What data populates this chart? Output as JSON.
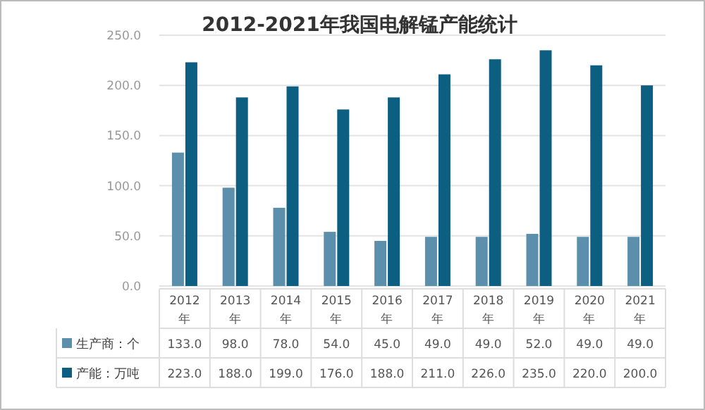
{
  "chart_data": {
    "type": "bar",
    "title": "2012-2021年我国电解锰产能统计",
    "categories": [
      "2012年",
      "2013年",
      "2014年",
      "2015年",
      "2016年",
      "2017年",
      "2018年",
      "2019年",
      "2020年",
      "2021年"
    ],
    "series": [
      {
        "name": "生产商：个",
        "color": "#5b8fab",
        "values": [
          133.0,
          98.0,
          78.0,
          54.0,
          45.0,
          49.0,
          49.0,
          52.0,
          49.0,
          49.0
        ],
        "value_labels": [
          "133.0",
          "98.0",
          "78.0",
          "54.0",
          "45.0",
          "49.0",
          "49.0",
          "52.0",
          "49.0",
          "49.0"
        ]
      },
      {
        "name": "产能：万吨",
        "color": "#0d5f82",
        "values": [
          223.0,
          188.0,
          199.0,
          176.0,
          188.0,
          211.0,
          226.0,
          235.0,
          220.0,
          200.0
        ],
        "value_labels": [
          "223.0",
          "188.0",
          "199.0",
          "176.0",
          "188.0",
          "211.0",
          "226.0",
          "235.0",
          "220.0",
          "200.0"
        ]
      }
    ],
    "ylim": [
      0,
      250
    ],
    "yticks": [
      {
        "value": 0,
        "label": "0.0"
      },
      {
        "value": 50,
        "label": "50.0"
      },
      {
        "value": 100,
        "label": "100.0"
      },
      {
        "value": 150,
        "label": "150.0"
      },
      {
        "value": 200,
        "label": "200.0"
      },
      {
        "value": 250,
        "label": "250.0"
      }
    ],
    "grid": "y",
    "legend": "bottom"
  }
}
